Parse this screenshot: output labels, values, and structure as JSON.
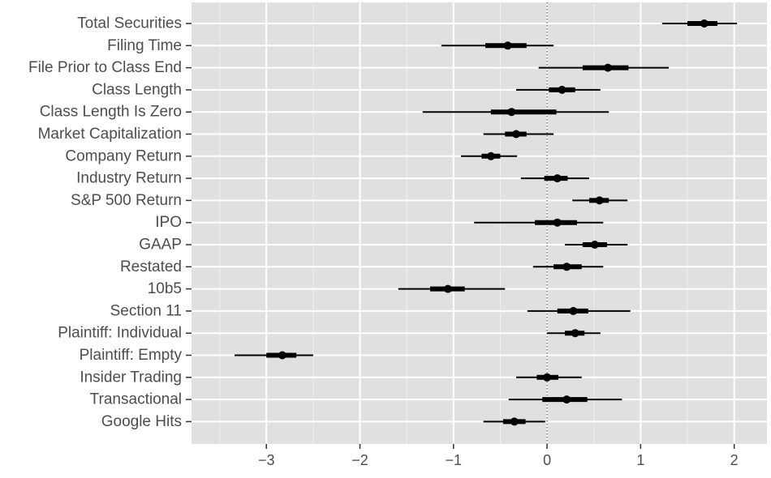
{
  "chart_data": {
    "type": "coefficient_plot",
    "title": "",
    "xlabel": "",
    "ylabel": "",
    "xlim": [
      -3.8,
      2.35
    ],
    "x_ticks": [
      -3,
      -2,
      -1,
      0,
      1,
      2
    ],
    "x_tick_labels": [
      "−3",
      "−2",
      "−1",
      "0",
      "1",
      "2"
    ],
    "grid": true,
    "reference_line": 0,
    "colors": {
      "panel_background": "#e0e0e0",
      "grid_major": "#ffffff",
      "grid_minor": "#f0f0f0",
      "mark": "#000000",
      "reference_line": "#333333",
      "tick_text": "#4d4d4d"
    },
    "rows": [
      {
        "label": "Total Securities",
        "estimate": 1.68,
        "inner": [
          1.5,
          1.82
        ],
        "outer": [
          1.23,
          2.03
        ]
      },
      {
        "label": "Filing Time",
        "estimate": -0.42,
        "inner": [
          -0.66,
          -0.22
        ],
        "outer": [
          -1.13,
          0.07
        ]
      },
      {
        "label": "File Prior to Class End",
        "estimate": 0.65,
        "inner": [
          0.38,
          0.87
        ],
        "outer": [
          -0.09,
          1.3
        ]
      },
      {
        "label": "Class Length",
        "estimate": 0.16,
        "inner": [
          0.02,
          0.3
        ],
        "outer": [
          -0.33,
          0.57
        ]
      },
      {
        "label": "Class Length Is Zero",
        "estimate": -0.38,
        "inner": [
          -0.6,
          0.1
        ],
        "outer": [
          -1.33,
          0.66
        ]
      },
      {
        "label": "Market Capitalization",
        "estimate": -0.33,
        "inner": [
          -0.45,
          -0.22
        ],
        "outer": [
          -0.68,
          0.07
        ]
      },
      {
        "label": "Company Return",
        "estimate": -0.6,
        "inner": [
          -0.7,
          -0.5
        ],
        "outer": [
          -0.92,
          -0.32
        ]
      },
      {
        "label": "Industry Return",
        "estimate": 0.11,
        "inner": [
          -0.03,
          0.22
        ],
        "outer": [
          -0.28,
          0.45
        ]
      },
      {
        "label": "S&P 500 Return",
        "estimate": 0.56,
        "inner": [
          0.45,
          0.66
        ],
        "outer": [
          0.27,
          0.86
        ]
      },
      {
        "label": "IPO",
        "estimate": 0.11,
        "inner": [
          -0.13,
          0.32
        ],
        "outer": [
          -0.78,
          0.6
        ]
      },
      {
        "label": "GAAP",
        "estimate": 0.51,
        "inner": [
          0.38,
          0.64
        ],
        "outer": [
          0.19,
          0.86
        ]
      },
      {
        "label": "Restated",
        "estimate": 0.21,
        "inner": [
          0.07,
          0.37
        ],
        "outer": [
          -0.15,
          0.6
        ]
      },
      {
        "label": "10b5",
        "estimate": -1.06,
        "inner": [
          -1.25,
          -0.88
        ],
        "outer": [
          -1.59,
          -0.45
        ]
      },
      {
        "label": "Section 11",
        "estimate": 0.28,
        "inner": [
          0.11,
          0.44
        ],
        "outer": [
          -0.21,
          0.89
        ]
      },
      {
        "label": "Plaintiff: Individual",
        "estimate": 0.3,
        "inner": [
          0.19,
          0.4
        ],
        "outer": [
          0.0,
          0.57
        ]
      },
      {
        "label": "Plaintiff: Empty",
        "estimate": -2.83,
        "inner": [
          -3.0,
          -2.68
        ],
        "outer": [
          -3.34,
          -2.5
        ]
      },
      {
        "label": "Insider Trading",
        "estimate": 0.0,
        "inner": [
          -0.11,
          0.12
        ],
        "outer": [
          -0.33,
          0.37
        ]
      },
      {
        "label": "Transactional",
        "estimate": 0.21,
        "inner": [
          -0.05,
          0.43
        ],
        "outer": [
          -0.41,
          0.8
        ]
      },
      {
        "label": "Google Hits",
        "estimate": -0.35,
        "inner": [
          -0.47,
          -0.23
        ],
        "outer": [
          -0.68,
          -0.02
        ]
      }
    ]
  }
}
